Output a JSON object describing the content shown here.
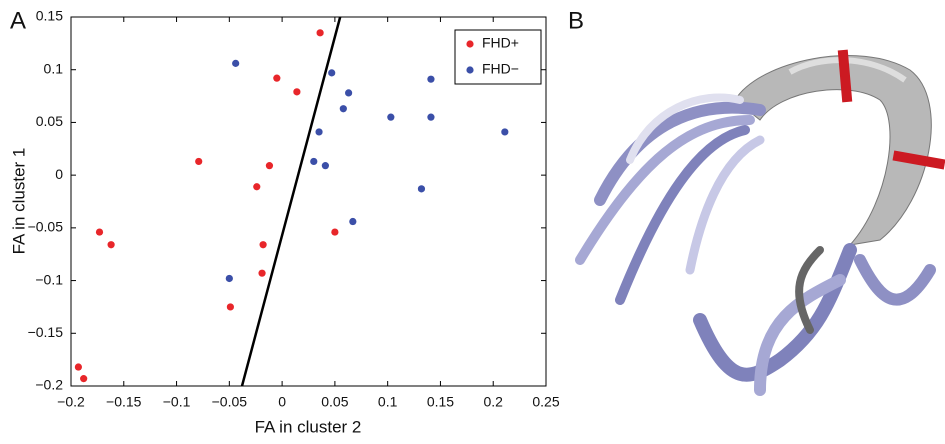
{
  "chart_data": {
    "type": "scatter",
    "panel_labels": [
      "A",
      "B"
    ],
    "xlabel": "FA in cluster 2",
    "ylabel": "FA in cluster 1",
    "xlim": [
      -0.2,
      0.25
    ],
    "ylim": [
      -0.2,
      0.15
    ],
    "xticks": [
      {
        "value": -0.2,
        "label": "−0.2"
      },
      {
        "value": -0.15,
        "label": "−0.15"
      },
      {
        "value": -0.1,
        "label": "−0.1"
      },
      {
        "value": -0.05,
        "label": "−0.05"
      },
      0,
      0.05,
      0.1,
      0.15,
      0.2,
      0.25
    ],
    "yticks": [
      {
        "value": -0.2,
        "label": "−0.2"
      },
      {
        "value": -0.15,
        "label": "−0.15"
      },
      {
        "value": -0.1,
        "label": "−0.1"
      },
      {
        "value": -0.05,
        "label": "−0.05"
      },
      0,
      0.05,
      0.1,
      0.15
    ],
    "legend": "upper right",
    "series": [
      {
        "name": "FHD+",
        "color": "#e8262a",
        "x": [
          0.036,
          -0.005,
          0.014,
          -0.079,
          -0.012,
          -0.024,
          -0.018,
          -0.019,
          -0.049,
          0.05,
          -0.173,
          -0.162,
          -0.193,
          -0.188
        ],
        "values": [
          0.135,
          0.092,
          0.079,
          0.013,
          0.009,
          -0.011,
          -0.066,
          -0.093,
          -0.125,
          -0.054,
          -0.054,
          -0.066,
          -0.182,
          -0.193
        ]
      },
      {
        "name": "FHD−",
        "color": "#3b4fa8",
        "x": [
          -0.044,
          0.047,
          0.063,
          0.058,
          0.035,
          0.103,
          0.141,
          0.141,
          0.211,
          0.03,
          0.041,
          0.132,
          0.067,
          -0.05
        ],
        "values": [
          0.106,
          0.097,
          0.078,
          0.063,
          0.041,
          0.055,
          0.091,
          0.055,
          0.041,
          0.013,
          0.009,
          -0.013,
          -0.044,
          -0.098
        ]
      }
    ],
    "boundary": {
      "x": [
        0.055,
        -0.038
      ],
      "y": [
        0.15,
        -0.2
      ],
      "color": "#000000"
    }
  }
}
